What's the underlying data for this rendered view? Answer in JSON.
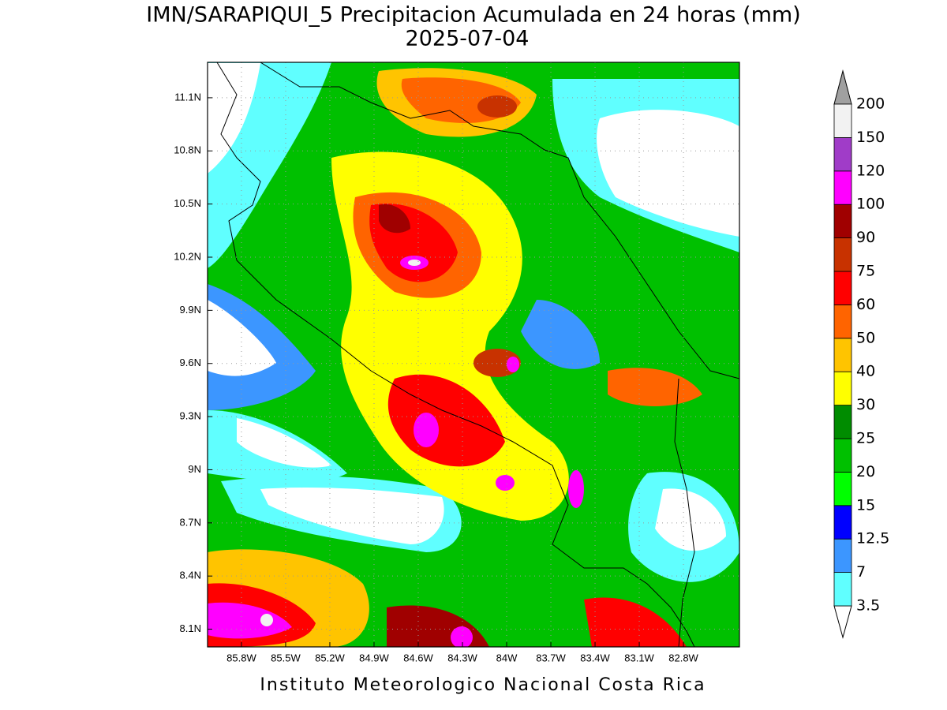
{
  "chart_data": {
    "type": "map",
    "title": "IMN/SARAPIQUI_5 Precipitacion Acumulada en 24 horas (mm)",
    "subtitle": "2025-07-04",
    "footer": "Instituto Meteorologico Nacional Costa Rica",
    "xlim": [
      -86.03,
      -82.42
    ],
    "ylim": [
      8.0,
      11.3
    ],
    "xticks": [
      {
        "value": -85.8,
        "label": "85.8W"
      },
      {
        "value": -85.5,
        "label": "85.5W"
      },
      {
        "value": -85.2,
        "label": "85.2W"
      },
      {
        "value": -84.9,
        "label": "84.9W"
      },
      {
        "value": -84.6,
        "label": "84.6W"
      },
      {
        "value": -84.3,
        "label": "84.3W"
      },
      {
        "value": -84.0,
        "label": "84W"
      },
      {
        "value": -83.7,
        "label": "83.7W"
      },
      {
        "value": -83.4,
        "label": "83.4W"
      },
      {
        "value": -83.1,
        "label": "83.1W"
      },
      {
        "value": -82.8,
        "label": "82.8W"
      }
    ],
    "yticks": [
      {
        "value": 8.1,
        "label": "8.1N"
      },
      {
        "value": 8.4,
        "label": "8.4N"
      },
      {
        "value": 8.7,
        "label": "8.7N"
      },
      {
        "value": 9.0,
        "label": "9N"
      },
      {
        "value": 9.3,
        "label": "9.3N"
      },
      {
        "value": 9.6,
        "label": "9.6N"
      },
      {
        "value": 9.9,
        "label": "9.9N"
      },
      {
        "value": 10.2,
        "label": "10.2N"
      },
      {
        "value": 10.5,
        "label": "10.5N"
      },
      {
        "value": 10.8,
        "label": "10.8N"
      },
      {
        "value": 11.1,
        "label": "11.1N"
      }
    ],
    "grid": true,
    "colorbar": {
      "levels": [
        3.5,
        7,
        12.5,
        15,
        20,
        25,
        30,
        40,
        50,
        60,
        75,
        90,
        100,
        120,
        150,
        200
      ],
      "colors": [
        "#60ffff",
        "#3c96ff",
        "#0000ff",
        "#00ff00",
        "#00c000",
        "#008c00",
        "#ffff00",
        "#ffc400",
        "#ff6400",
        "#ff0000",
        "#c83200",
        "#a00000",
        "#ff00ff",
        "#a03cc8",
        "#f2f2f2"
      ],
      "under_color": "#ffffff",
      "over_color": "#a0a0a0"
    }
  }
}
